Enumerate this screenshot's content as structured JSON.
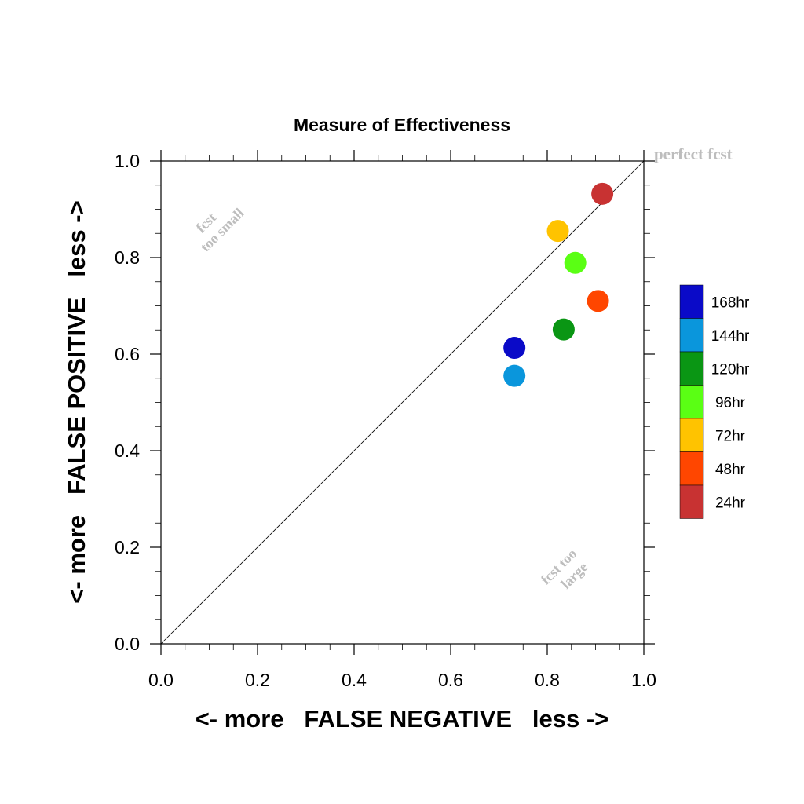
{
  "chart_data": {
    "type": "scatter",
    "title": "Measure of Effectiveness",
    "xlabel": "<- more   FALSE NEGATIVE   less ->",
    "ylabel": "<- more   FALSE POSITIVE   less ->",
    "xlim": [
      0.0,
      1.0
    ],
    "ylim": [
      0.0,
      1.0
    ],
    "xticks": [
      "0.0",
      "0.2",
      "0.4",
      "0.6",
      "0.8",
      "1.0"
    ],
    "yticks": [
      "0.0",
      "0.2",
      "0.4",
      "0.6",
      "0.8",
      "1.0"
    ],
    "grid": false,
    "legend_position": "right",
    "reference_line": {
      "from": [
        0,
        0
      ],
      "to": [
        1,
        1
      ]
    },
    "annotations": {
      "perfect": "perfect fcst",
      "too_small": [
        "fcst",
        "too small"
      ],
      "too_large": [
        "fcst too",
        "large"
      ]
    },
    "series": [
      {
        "name": "168hr",
        "color": "#0a0ac8",
        "x": 0.732,
        "y": 0.613
      },
      {
        "name": "144hr",
        "color": "#0a96dc",
        "x": 0.732,
        "y": 0.555
      },
      {
        "name": "120hr",
        "color": "#0a9614",
        "x": 0.834,
        "y": 0.651
      },
      {
        "name": "96hr",
        "color": "#5aff14",
        "x": 0.858,
        "y": 0.789
      },
      {
        "name": "72hr",
        "color": "#ffc300",
        "x": 0.822,
        "y": 0.855
      },
      {
        "name": "48hr",
        "color": "#ff4600",
        "x": 0.905,
        "y": 0.71
      },
      {
        "name": "24hr",
        "color": "#c83232",
        "x": 0.914,
        "y": 0.932
      }
    ]
  }
}
